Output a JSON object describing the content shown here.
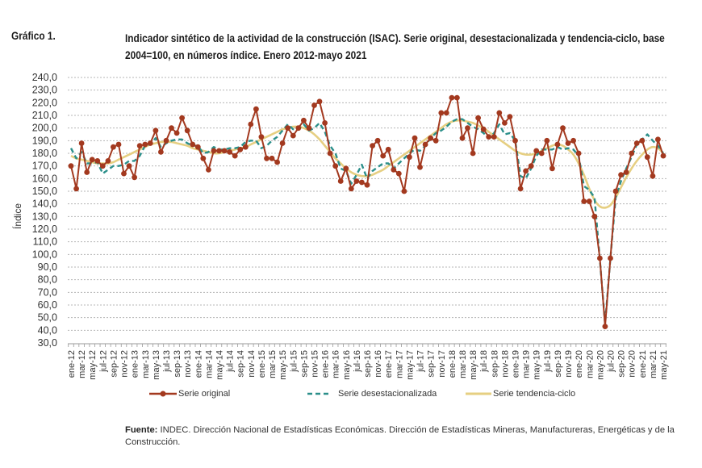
{
  "header": {
    "label": "Gráfico 1.",
    "title": "Indicador sintético de la actividad de la construcción (ISAC). Serie original, desestacionalizada y tendencia-ciclo, base 2004=100, en números índice. Enero 2012-mayo 2021"
  },
  "colors": {
    "original": "#a3391f",
    "desestacionalizada": "#2b8f8a",
    "tendencia": "#e6cf82",
    "grid": "#b5b5b5",
    "text": "#333333"
  },
  "legend": {
    "original": "Serie original",
    "desestacionalizada": "Serie desestacionalizada",
    "tendencia": "Serie tendencia-ciclo"
  },
  "source": {
    "label": "Fuente:",
    "text": "INDEC. Dirección Nacional de Estadísticas Económicas. Dirección de Estadísticas Mineras, Manufactureras, Energéticas y de la Construcción."
  },
  "chart_data": {
    "type": "line",
    "title": "Indicador sintético de la actividad de la construcción (ISAC). Serie original, desestacionalizada y tendencia-ciclo, base 2004=100, en números índice. Enero 2012-mayo 2021",
    "xlabel": "",
    "ylabel": "Índice",
    "ylim": [
      30,
      240
    ],
    "ytick_step": 10,
    "ytick_labels": [
      "30,0",
      "40,0",
      "50,0",
      "60,0",
      "70,0",
      "80,0",
      "90,0",
      "100,0",
      "110,0",
      "120,0",
      "130,0",
      "140,0",
      "150,0",
      "160,0",
      "170,0",
      "180,0",
      "190,0",
      "200,0",
      "210,0",
      "220,0",
      "230,0",
      "240,0"
    ],
    "grid": true,
    "legend_position": "bottom",
    "x": [
      "ene-12",
      "feb-12",
      "mar-12",
      "abr-12",
      "may-12",
      "jun-12",
      "jul-12",
      "ago-12",
      "sep-12",
      "oct-12",
      "nov-12",
      "dic-12",
      "ene-13",
      "feb-13",
      "mar-13",
      "abr-13",
      "may-13",
      "jun-13",
      "jul-13",
      "ago-13",
      "sep-13",
      "oct-13",
      "nov-13",
      "dic-13",
      "ene-14",
      "feb-14",
      "mar-14",
      "abr-14",
      "may-14",
      "jun-14",
      "jul-14",
      "ago-14",
      "sep-14",
      "oct-14",
      "nov-14",
      "dic-14",
      "ene-15",
      "feb-15",
      "mar-15",
      "abr-15",
      "may-15",
      "jun-15",
      "jul-15",
      "ago-15",
      "sep-15",
      "oct-15",
      "nov-15",
      "dic-15",
      "ene-16",
      "feb-16",
      "mar-16",
      "abr-16",
      "may-16",
      "jun-16",
      "jul-16",
      "ago-16",
      "sep-16",
      "oct-16",
      "nov-16",
      "dic-16",
      "ene-17",
      "feb-17",
      "mar-17",
      "abr-17",
      "may-17",
      "jun-17",
      "jul-17",
      "ago-17",
      "sep-17",
      "oct-17",
      "nov-17",
      "dic-17",
      "ene-18",
      "feb-18",
      "mar-18",
      "abr-18",
      "may-18",
      "jun-18",
      "jul-18",
      "ago-18",
      "sep-18",
      "oct-18",
      "nov-18",
      "dic-18",
      "ene-19",
      "feb-19",
      "mar-19",
      "abr-19",
      "may-19",
      "jun-19",
      "jul-19",
      "ago-19",
      "sep-19",
      "oct-19",
      "nov-19",
      "dic-19",
      "ene-20",
      "feb-20",
      "mar-20",
      "abr-20",
      "may-20",
      "jun-20",
      "jul-20",
      "ago-20",
      "sep-20",
      "oct-20",
      "nov-20",
      "dic-20",
      "ene-21",
      "feb-21",
      "mar-21",
      "abr-21",
      "may-21"
    ],
    "series": [
      {
        "name": "Serie original",
        "style": "line-with-markers",
        "values": [
          170,
          152,
          188,
          165,
          175,
          174,
          170,
          174,
          185,
          187,
          164,
          170,
          161,
          186,
          187,
          188,
          198,
          181,
          190,
          200,
          196,
          208,
          198,
          187,
          185,
          176,
          167,
          182,
          182,
          182,
          181,
          178,
          183,
          185,
          203,
          215,
          193,
          176,
          176,
          173,
          188,
          200,
          194,
          200,
          206,
          200,
          218,
          221,
          204,
          180,
          170,
          158,
          168,
          152,
          158,
          157,
          155,
          186,
          190,
          178,
          183,
          167,
          164,
          150,
          177,
          192,
          169,
          187,
          192,
          190,
          212,
          212,
          224,
          224,
          192,
          200,
          180,
          208,
          199,
          193,
          193,
          212,
          204,
          209,
          190,
          152,
          166,
          170,
          182,
          180,
          190,
          168,
          187,
          200,
          188,
          190,
          180,
          142,
          142,
          130,
          97,
          43,
          97,
          150,
          163,
          165,
          180,
          188,
          190,
          177,
          162,
          191,
          178
        ]
      },
      {
        "name": "Serie desestacionalizada",
        "style": "dashed",
        "values": [
          184,
          176,
          181,
          172,
          172,
          173,
          164,
          167,
          170,
          170,
          171,
          174,
          174,
          178,
          186,
          187,
          192,
          185,
          188,
          190,
          191,
          191,
          188,
          186,
          186,
          180,
          181,
          185,
          183,
          183,
          184,
          184,
          185,
          189,
          190,
          190,
          184,
          186,
          190,
          193,
          198,
          203,
          199,
          199,
          203,
          198,
          200,
          204,
          197,
          186,
          180,
          168,
          166,
          156,
          163,
          171,
          160,
          166,
          169,
          172,
          172,
          168,
          172,
          176,
          180,
          183,
          182,
          186,
          192,
          196,
          198,
          201,
          205,
          207,
          207,
          204,
          201,
          199,
          196,
          192,
          196,
          203,
          195,
          196,
          190,
          162,
          160,
          168,
          178,
          183,
          183,
          183,
          185,
          183,
          184,
          183,
          178,
          154,
          151,
          145,
          96,
          45,
          97,
          145,
          158,
          168,
          177,
          187,
          191,
          195,
          190,
          186,
          180
        ]
      },
      {
        "name": "Serie tendencia-ciclo",
        "style": "solid",
        "values": [
          178,
          176,
          175,
          174,
          173,
          172,
          172,
          172,
          173,
          175,
          177,
          179,
          181,
          183,
          185,
          187,
          188,
          189,
          189,
          189,
          188,
          187,
          186,
          184,
          183,
          182,
          181,
          180,
          180,
          181,
          182,
          183,
          184,
          185,
          187,
          189,
          191,
          193,
          195,
          197,
          199,
          200,
          201,
          201,
          200,
          198,
          195,
          191,
          186,
          181,
          176,
          172,
          168,
          165,
          163,
          162,
          162,
          163,
          165,
          167,
          170,
          173,
          176,
          179,
          182,
          185,
          188,
          191,
          194,
          197,
          200,
          203,
          205,
          206,
          206,
          205,
          204,
          202,
          200,
          197,
          194,
          191,
          188,
          185,
          182,
          180,
          179,
          179,
          180,
          182,
          184,
          186,
          187,
          186,
          183,
          179,
          172,
          163,
          152,
          143,
          138,
          137,
          139,
          145,
          153,
          161,
          168,
          174,
          179,
          183,
          185,
          184,
          180
        ]
      }
    ]
  }
}
